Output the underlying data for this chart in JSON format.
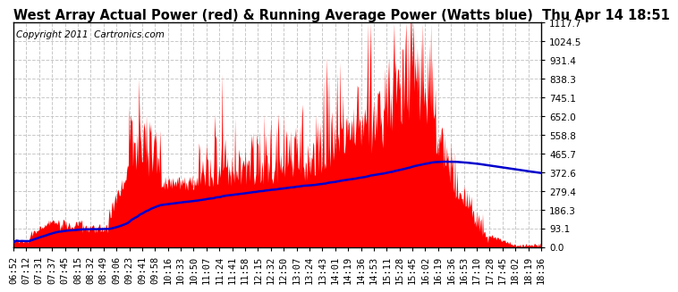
{
  "title": "West Array Actual Power (red) & Running Average Power (Watts blue)  Thu Apr 14 18:51",
  "copyright": "Copyright 2011  Cartronics.com",
  "background_color": "#ffffff",
  "plot_bg_color": "#ffffff",
  "yticks": [
    0.0,
    93.1,
    186.3,
    279.4,
    372.6,
    465.7,
    558.8,
    652.0,
    745.1,
    838.3,
    931.4,
    1024.5,
    1117.7
  ],
  "ymax": 1117.7,
  "ymin": 0.0,
  "grid_color": "#c8c8c8",
  "red_color": "#ff0000",
  "blue_color": "#0000cc",
  "title_fontsize": 10.5,
  "copyright_fontsize": 7.5,
  "tick_fontsize": 7.5,
  "xtick_labels": [
    "06:52",
    "07:12",
    "07:31",
    "07:37",
    "07:45",
    "08:15",
    "08:32",
    "08:49",
    "09:06",
    "09:23",
    "09:41",
    "09:58",
    "10:16",
    "10:33",
    "10:50",
    "11:07",
    "11:24",
    "11:41",
    "11:58",
    "12:15",
    "12:32",
    "12:50",
    "13:07",
    "13:24",
    "13:43",
    "14:01",
    "14:19",
    "14:36",
    "14:53",
    "15:11",
    "15:28",
    "15:45",
    "16:02",
    "16:19",
    "16:36",
    "16:53",
    "17:10",
    "17:28",
    "17:45",
    "18:02",
    "18:19",
    "18:36"
  ]
}
